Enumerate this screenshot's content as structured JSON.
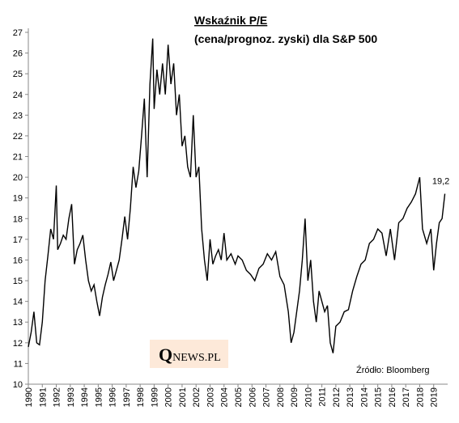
{
  "chart_data": {
    "type": "line",
    "title": "Wskaźnik P/E",
    "subtitle": "(cena/prognoz.  zyski) dla S&P 500",
    "source": "Źródło: Bloomberg",
    "logo": {
      "initial": "Q",
      "rest": "NEWS.PL"
    },
    "annotations": [
      {
        "text": "19,2",
        "x": 2019.8,
        "y": 19.2
      }
    ],
    "color": "#000000",
    "xlim": [
      1990,
      2020
    ],
    "xticks": [
      1990,
      1991,
      1992,
      1993,
      1994,
      1995,
      1996,
      1997,
      1998,
      1999,
      2000,
      2001,
      2002,
      2003,
      2004,
      2005,
      2006,
      2007,
      2008,
      2009,
      2010,
      2011,
      2012,
      2013,
      2014,
      2015,
      2016,
      2017,
      2018,
      2019
    ],
    "ylim": [
      10,
      27
    ],
    "yticks": [
      10,
      11,
      12,
      13,
      14,
      15,
      16,
      17,
      18,
      19,
      20,
      21,
      22,
      23,
      24,
      25,
      26,
      27
    ],
    "x": [
      1990.0,
      1990.2,
      1990.4,
      1990.6,
      1990.8,
      1991.0,
      1991.2,
      1991.4,
      1991.6,
      1991.8,
      1992.0,
      1992.1,
      1992.3,
      1992.5,
      1992.7,
      1992.9,
      1993.1,
      1993.3,
      1993.5,
      1993.7,
      1993.9,
      1994.1,
      1994.3,
      1994.5,
      1994.7,
      1994.9,
      1995.1,
      1995.3,
      1995.5,
      1995.7,
      1995.9,
      1996.1,
      1996.3,
      1996.5,
      1996.7,
      1996.9,
      1997.1,
      1997.3,
      1997.5,
      1997.7,
      1997.9,
      1998.1,
      1998.3,
      1998.5,
      1998.7,
      1998.9,
      1999.0,
      1999.2,
      1999.4,
      1999.6,
      1999.8,
      2000.0,
      2000.2,
      2000.4,
      2000.6,
      2000.8,
      2001.0,
      2001.2,
      2001.4,
      2001.6,
      2001.8,
      2002.0,
      2002.2,
      2002.4,
      2002.6,
      2002.8,
      2003.0,
      2003.2,
      2003.4,
      2003.6,
      2003.8,
      2004.0,
      2004.2,
      2004.5,
      2004.8,
      2005.0,
      2005.3,
      2005.6,
      2005.9,
      2006.2,
      2006.5,
      2006.8,
      2007.1,
      2007.4,
      2007.7,
      2008.0,
      2008.3,
      2008.6,
      2008.8,
      2009.0,
      2009.2,
      2009.4,
      2009.6,
      2009.8,
      2010.0,
      2010.2,
      2010.4,
      2010.6,
      2010.8,
      2011.0,
      2011.2,
      2011.4,
      2011.6,
      2011.8,
      2012.0,
      2012.3,
      2012.6,
      2012.9,
      2013.2,
      2013.5,
      2013.8,
      2014.1,
      2014.4,
      2014.7,
      2015.0,
      2015.3,
      2015.6,
      2015.9,
      2016.2,
      2016.5,
      2016.8,
      2017.1,
      2017.4,
      2017.7,
      2018.0,
      2018.2,
      2018.5,
      2018.8,
      2019.0,
      2019.2,
      2019.4,
      2019.6,
      2019.8
    ],
    "values": [
      11.8,
      12.5,
      13.5,
      12.0,
      11.9,
      13.0,
      15.0,
      16.2,
      17.5,
      17.0,
      19.6,
      16.5,
      16.8,
      17.2,
      17.0,
      18.0,
      18.7,
      15.8,
      16.5,
      16.8,
      17.2,
      16.0,
      15.0,
      14.5,
      14.8,
      14.0,
      13.3,
      14.2,
      14.8,
      15.3,
      15.9,
      15.0,
      15.5,
      16.0,
      17.0,
      18.1,
      17.0,
      18.5,
      20.5,
      19.5,
      20.3,
      22.0,
      23.8,
      20.0,
      24.5,
      26.7,
      23.3,
      25.2,
      24.0,
      25.5,
      24.0,
      26.4,
      24.5,
      25.5,
      23.0,
      24.0,
      21.5,
      22.0,
      20.5,
      20.0,
      23.0,
      20.0,
      20.5,
      17.5,
      16.0,
      15.0,
      17.0,
      15.8,
      16.2,
      16.5,
      16.0,
      17.3,
      16.0,
      16.3,
      15.8,
      16.2,
      16.0,
      15.5,
      15.3,
      15.0,
      15.6,
      15.8,
      16.3,
      16.0,
      16.4,
      15.2,
      14.8,
      13.5,
      12.0,
      12.5,
      13.5,
      14.5,
      16.0,
      18.0,
      15.0,
      16.0,
      14.0,
      13.0,
      14.5,
      14.0,
      13.5,
      13.8,
      12.0,
      11.5,
      12.8,
      13.0,
      13.5,
      13.6,
      14.5,
      15.2,
      15.8,
      16.0,
      16.8,
      17.0,
      17.5,
      17.3,
      16.2,
      17.5,
      16.0,
      17.8,
      18.0,
      18.5,
      18.8,
      19.2,
      20.0,
      17.5,
      16.8,
      17.5,
      15.5,
      16.8,
      17.8,
      18.0,
      19.2
    ]
  }
}
